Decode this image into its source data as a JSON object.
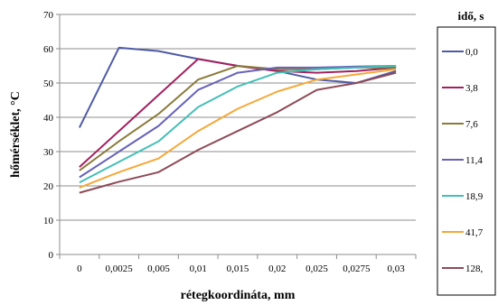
{
  "chart_data": {
    "type": "line",
    "xlabel": "rétegkoordináta, mm",
    "ylabel": "hőmérséklet, °C",
    "categories": [
      "0",
      "0,0025",
      "0,005",
      "0,01",
      "0,015",
      "0,02",
      "0,025",
      "0,0275",
      "0,03"
    ],
    "ylim": [
      0,
      70
    ],
    "yticks": [
      0,
      10,
      20,
      30,
      40,
      50,
      60,
      70
    ],
    "grid": "horizontal",
    "legend": {
      "title": "idő, s",
      "placement": "right"
    },
    "series": [
      {
        "name": "0,0",
        "color": "#4F5BA5",
        "values": [
          37,
          60.3,
          59.3,
          57,
          55,
          53.5,
          51,
          50,
          53.5
        ]
      },
      {
        "name": "3,8",
        "color": "#A3205F",
        "values": [
          25.5,
          36,
          46.5,
          57,
          55,
          53.5,
          53,
          53.5,
          54.5
        ]
      },
      {
        "name": "7,6",
        "color": "#8B7A3A",
        "values": [
          24.5,
          33,
          41,
          51,
          55,
          54,
          54,
          54.5,
          54.5
        ]
      },
      {
        "name": "11,4",
        "color": "#6662B8",
        "values": [
          22.5,
          30,
          37.5,
          48,
          53,
          54.5,
          54.5,
          54.8,
          55
        ]
      },
      {
        "name": "18,9",
        "color": "#43BFB7",
        "values": [
          21,
          27,
          33,
          43,
          49,
          53,
          54,
          54.5,
          55
        ]
      },
      {
        "name": "41,7",
        "color": "#F5A838",
        "values": [
          19.5,
          24,
          28,
          36,
          42.5,
          47.5,
          51,
          52.5,
          54
        ]
      },
      {
        "name": "128,",
        "color": "#8E4A57",
        "values": [
          18,
          21.2,
          24,
          30.5,
          36,
          41.5,
          48,
          50,
          53
        ]
      }
    ]
  }
}
